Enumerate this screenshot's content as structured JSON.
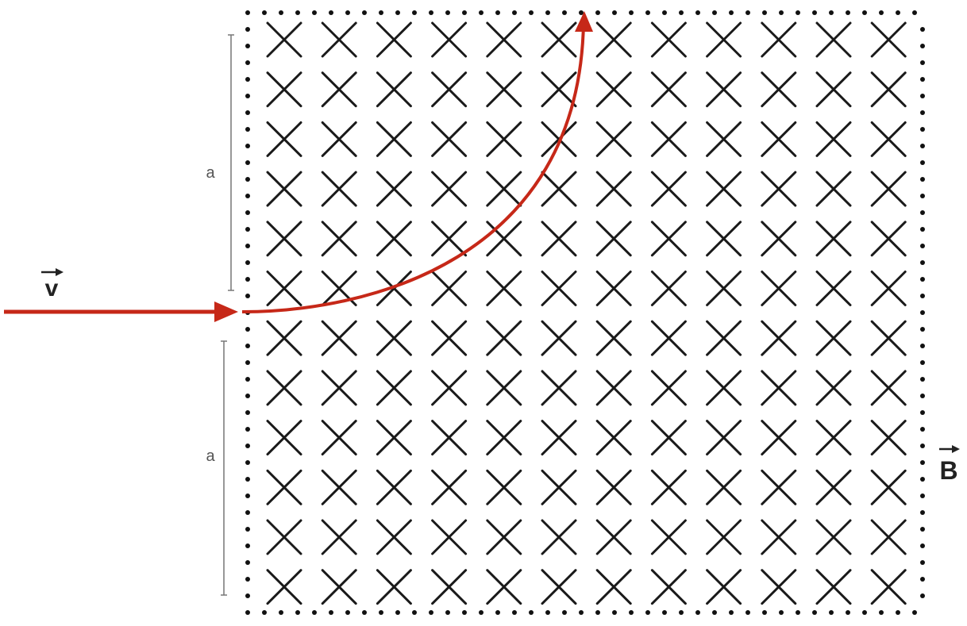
{
  "labels": {
    "velocity": "v",
    "field": "B",
    "dimension_upper": "a",
    "dimension_lower": "a"
  },
  "field": {
    "direction": "into-page",
    "rows": 12,
    "columns": 12,
    "cross_color": "#1a1a1a",
    "boundary_style": "dotted",
    "boundary_color": "#111111"
  },
  "trajectory": {
    "color": "#c62818",
    "incoming": "straight-horizontal-arrow",
    "inside_field": "quarter-circle-arc-upward",
    "exit": "top-edge-arrow"
  },
  "dimension_line_color": "#777777"
}
